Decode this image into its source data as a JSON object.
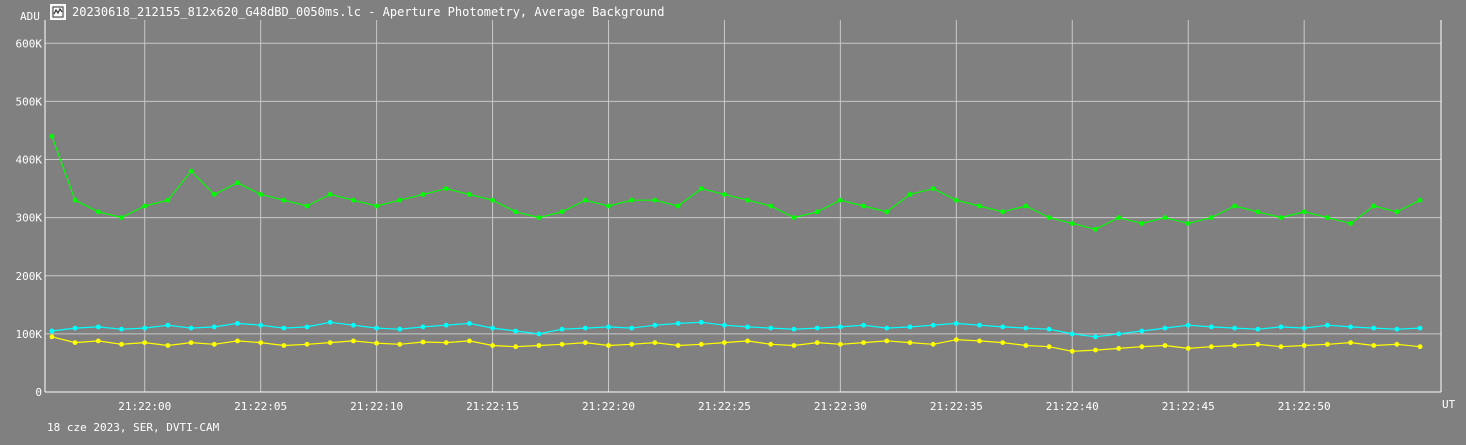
{
  "window": {
    "title": "20230618_212155_812x620_G48dBD_0050ms.lc - Aperture Photometry, Average Background",
    "icon": "lightcurve-app-icon"
  },
  "footer": "18 cze 2023, SER, DVTI-CAM",
  "colors": {
    "background": "#808080",
    "grid": "#c8c8c8",
    "text": "#ffffff",
    "green": "#00ff00",
    "cyan": "#00ffff",
    "yellow": "#ffff00"
  },
  "chart_data": {
    "type": "line",
    "title": "20230618_212155_812x620_G48dBD_0050ms.lc - Aperture Photometry, Average Background",
    "ylabel": "ADU",
    "xlabel": "UT",
    "ylim": [
      0,
      640000
    ],
    "xlim": [
      "21:21:55.7",
      "21:22:55.9"
    ],
    "y_ticks": [
      {
        "value": 0,
        "label": "0"
      },
      {
        "value": 100000,
        "label": "100K"
      },
      {
        "value": 200000,
        "label": "200K"
      },
      {
        "value": 300000,
        "label": "300K"
      },
      {
        "value": 400000,
        "label": "400K"
      },
      {
        "value": 500000,
        "label": "500K"
      },
      {
        "value": 600000,
        "label": "600K"
      }
    ],
    "x_ticks": [
      {
        "value": "21:22:00",
        "label": "21:22:00"
      },
      {
        "value": "21:22:05",
        "label": "21:22:05"
      },
      {
        "value": "21:22:10",
        "label": "21:22:10"
      },
      {
        "value": "21:22:15",
        "label": "21:22:15"
      },
      {
        "value": "21:22:20",
        "label": "21:22:20"
      },
      {
        "value": "21:22:25",
        "label": "21:22:25"
      },
      {
        "value": "21:22:30",
        "label": "21:22:30"
      },
      {
        "value": "21:22:35",
        "label": "21:22:35"
      },
      {
        "value": "21:22:40",
        "label": "21:22:40"
      },
      {
        "value": "21:22:45",
        "label": "21:22:45"
      },
      {
        "value": "21:22:50",
        "label": "21:22:50"
      }
    ],
    "grid": true,
    "legend": "none",
    "series": [
      {
        "color": "#00ff00",
        "x": [
          "21:21:56",
          "21:21:57",
          "21:21:58",
          "21:21:59",
          "21:22:00",
          "21:22:01",
          "21:22:02",
          "21:22:03",
          "21:22:04",
          "21:22:05",
          "21:22:06",
          "21:22:07",
          "21:22:08",
          "21:22:09",
          "21:22:10",
          "21:22:11",
          "21:22:12",
          "21:22:13",
          "21:22:14",
          "21:22:15",
          "21:22:16",
          "21:22:17",
          "21:22:18",
          "21:22:19",
          "21:22:20",
          "21:22:21",
          "21:22:22",
          "21:22:23",
          "21:22:24",
          "21:22:25",
          "21:22:26",
          "21:22:27",
          "21:22:28",
          "21:22:29",
          "21:22:30",
          "21:22:31",
          "21:22:32",
          "21:22:33",
          "21:22:34",
          "21:22:35",
          "21:22:36",
          "21:22:37",
          "21:22:38",
          "21:22:39",
          "21:22:40",
          "21:22:41",
          "21:22:42",
          "21:22:43",
          "21:22:44",
          "21:22:45",
          "21:22:46",
          "21:22:47",
          "21:22:48",
          "21:22:49",
          "21:22:50",
          "21:22:51",
          "21:22:52",
          "21:22:53",
          "21:22:54",
          "21:22:55"
        ],
        "values": [
          440000,
          330000,
          310000,
          300000,
          320000,
          330000,
          380000,
          340000,
          360000,
          340000,
          330000,
          320000,
          340000,
          330000,
          320000,
          330000,
          340000,
          350000,
          340000,
          330000,
          310000,
          300000,
          310000,
          330000,
          320000,
          330000,
          330000,
          320000,
          350000,
          340000,
          330000,
          320000,
          300000,
          310000,
          330000,
          320000,
          310000,
          340000,
          350000,
          330000,
          320000,
          310000,
          320000,
          300000,
          290000,
          280000,
          300000,
          290000,
          300000,
          290000,
          300000,
          320000,
          310000,
          300000,
          310000,
          300000,
          290000,
          320000,
          310000,
          330000
        ]
      },
      {
        "color": "#00ffff",
        "x": [
          "21:21:56",
          "21:21:57",
          "21:21:58",
          "21:21:59",
          "21:22:00",
          "21:22:01",
          "21:22:02",
          "21:22:03",
          "21:22:04",
          "21:22:05",
          "21:22:06",
          "21:22:07",
          "21:22:08",
          "21:22:09",
          "21:22:10",
          "21:22:11",
          "21:22:12",
          "21:22:13",
          "21:22:14",
          "21:22:15",
          "21:22:16",
          "21:22:17",
          "21:22:18",
          "21:22:19",
          "21:22:20",
          "21:22:21",
          "21:22:22",
          "21:22:23",
          "21:22:24",
          "21:22:25",
          "21:22:26",
          "21:22:27",
          "21:22:28",
          "21:22:29",
          "21:22:30",
          "21:22:31",
          "21:22:32",
          "21:22:33",
          "21:22:34",
          "21:22:35",
          "21:22:36",
          "21:22:37",
          "21:22:38",
          "21:22:39",
          "21:22:40",
          "21:22:41",
          "21:22:42",
          "21:22:43",
          "21:22:44",
          "21:22:45",
          "21:22:46",
          "21:22:47",
          "21:22:48",
          "21:22:49",
          "21:22:50",
          "21:22:51",
          "21:22:52",
          "21:22:53",
          "21:22:54",
          "21:22:55"
        ],
        "values": [
          105000,
          110000,
          112000,
          108000,
          110000,
          115000,
          110000,
          112000,
          118000,
          115000,
          110000,
          112000,
          120000,
          115000,
          110000,
          108000,
          112000,
          115000,
          118000,
          110000,
          105000,
          100000,
          108000,
          110000,
          112000,
          110000,
          115000,
          118000,
          120000,
          115000,
          112000,
          110000,
          108000,
          110000,
          112000,
          115000,
          110000,
          112000,
          115000,
          118000,
          115000,
          112000,
          110000,
          108000,
          100000,
          95000,
          100000,
          105000,
          110000,
          115000,
          112000,
          110000,
          108000,
          112000,
          110000,
          115000,
          112000,
          110000,
          108000,
          110000
        ]
      },
      {
        "color": "#ffff00",
        "x": [
          "21:21:56",
          "21:21:57",
          "21:21:58",
          "21:21:59",
          "21:22:00",
          "21:22:01",
          "21:22:02",
          "21:22:03",
          "21:22:04",
          "21:22:05",
          "21:22:06",
          "21:22:07",
          "21:22:08",
          "21:22:09",
          "21:22:10",
          "21:22:11",
          "21:22:12",
          "21:22:13",
          "21:22:14",
          "21:22:15",
          "21:22:16",
          "21:22:17",
          "21:22:18",
          "21:22:19",
          "21:22:20",
          "21:22:21",
          "21:22:22",
          "21:22:23",
          "21:22:24",
          "21:22:25",
          "21:22:26",
          "21:22:27",
          "21:22:28",
          "21:22:29",
          "21:22:30",
          "21:22:31",
          "21:22:32",
          "21:22:33",
          "21:22:34",
          "21:22:35",
          "21:22:36",
          "21:22:37",
          "21:22:38",
          "21:22:39",
          "21:22:40",
          "21:22:41",
          "21:22:42",
          "21:22:43",
          "21:22:44",
          "21:22:45",
          "21:22:46",
          "21:22:47",
          "21:22:48",
          "21:22:49",
          "21:22:50",
          "21:22:51",
          "21:22:52",
          "21:22:53",
          "21:22:54",
          "21:22:55"
        ],
        "values": [
          95000,
          85000,
          88000,
          82000,
          85000,
          80000,
          85000,
          82000,
          88000,
          85000,
          80000,
          82000,
          85000,
          88000,
          84000,
          82000,
          86000,
          85000,
          88000,
          80000,
          78000,
          80000,
          82000,
          85000,
          80000,
          82000,
          85000,
          80000,
          82000,
          85000,
          88000,
          82000,
          80000,
          85000,
          82000,
          85000,
          88000,
          85000,
          82000,
          90000,
          88000,
          85000,
          80000,
          78000,
          70000,
          72000,
          75000,
          78000,
          80000,
          75000,
          78000,
          80000,
          82000,
          78000,
          80000,
          82000,
          85000,
          80000,
          82000,
          78000
        ]
      }
    ]
  }
}
